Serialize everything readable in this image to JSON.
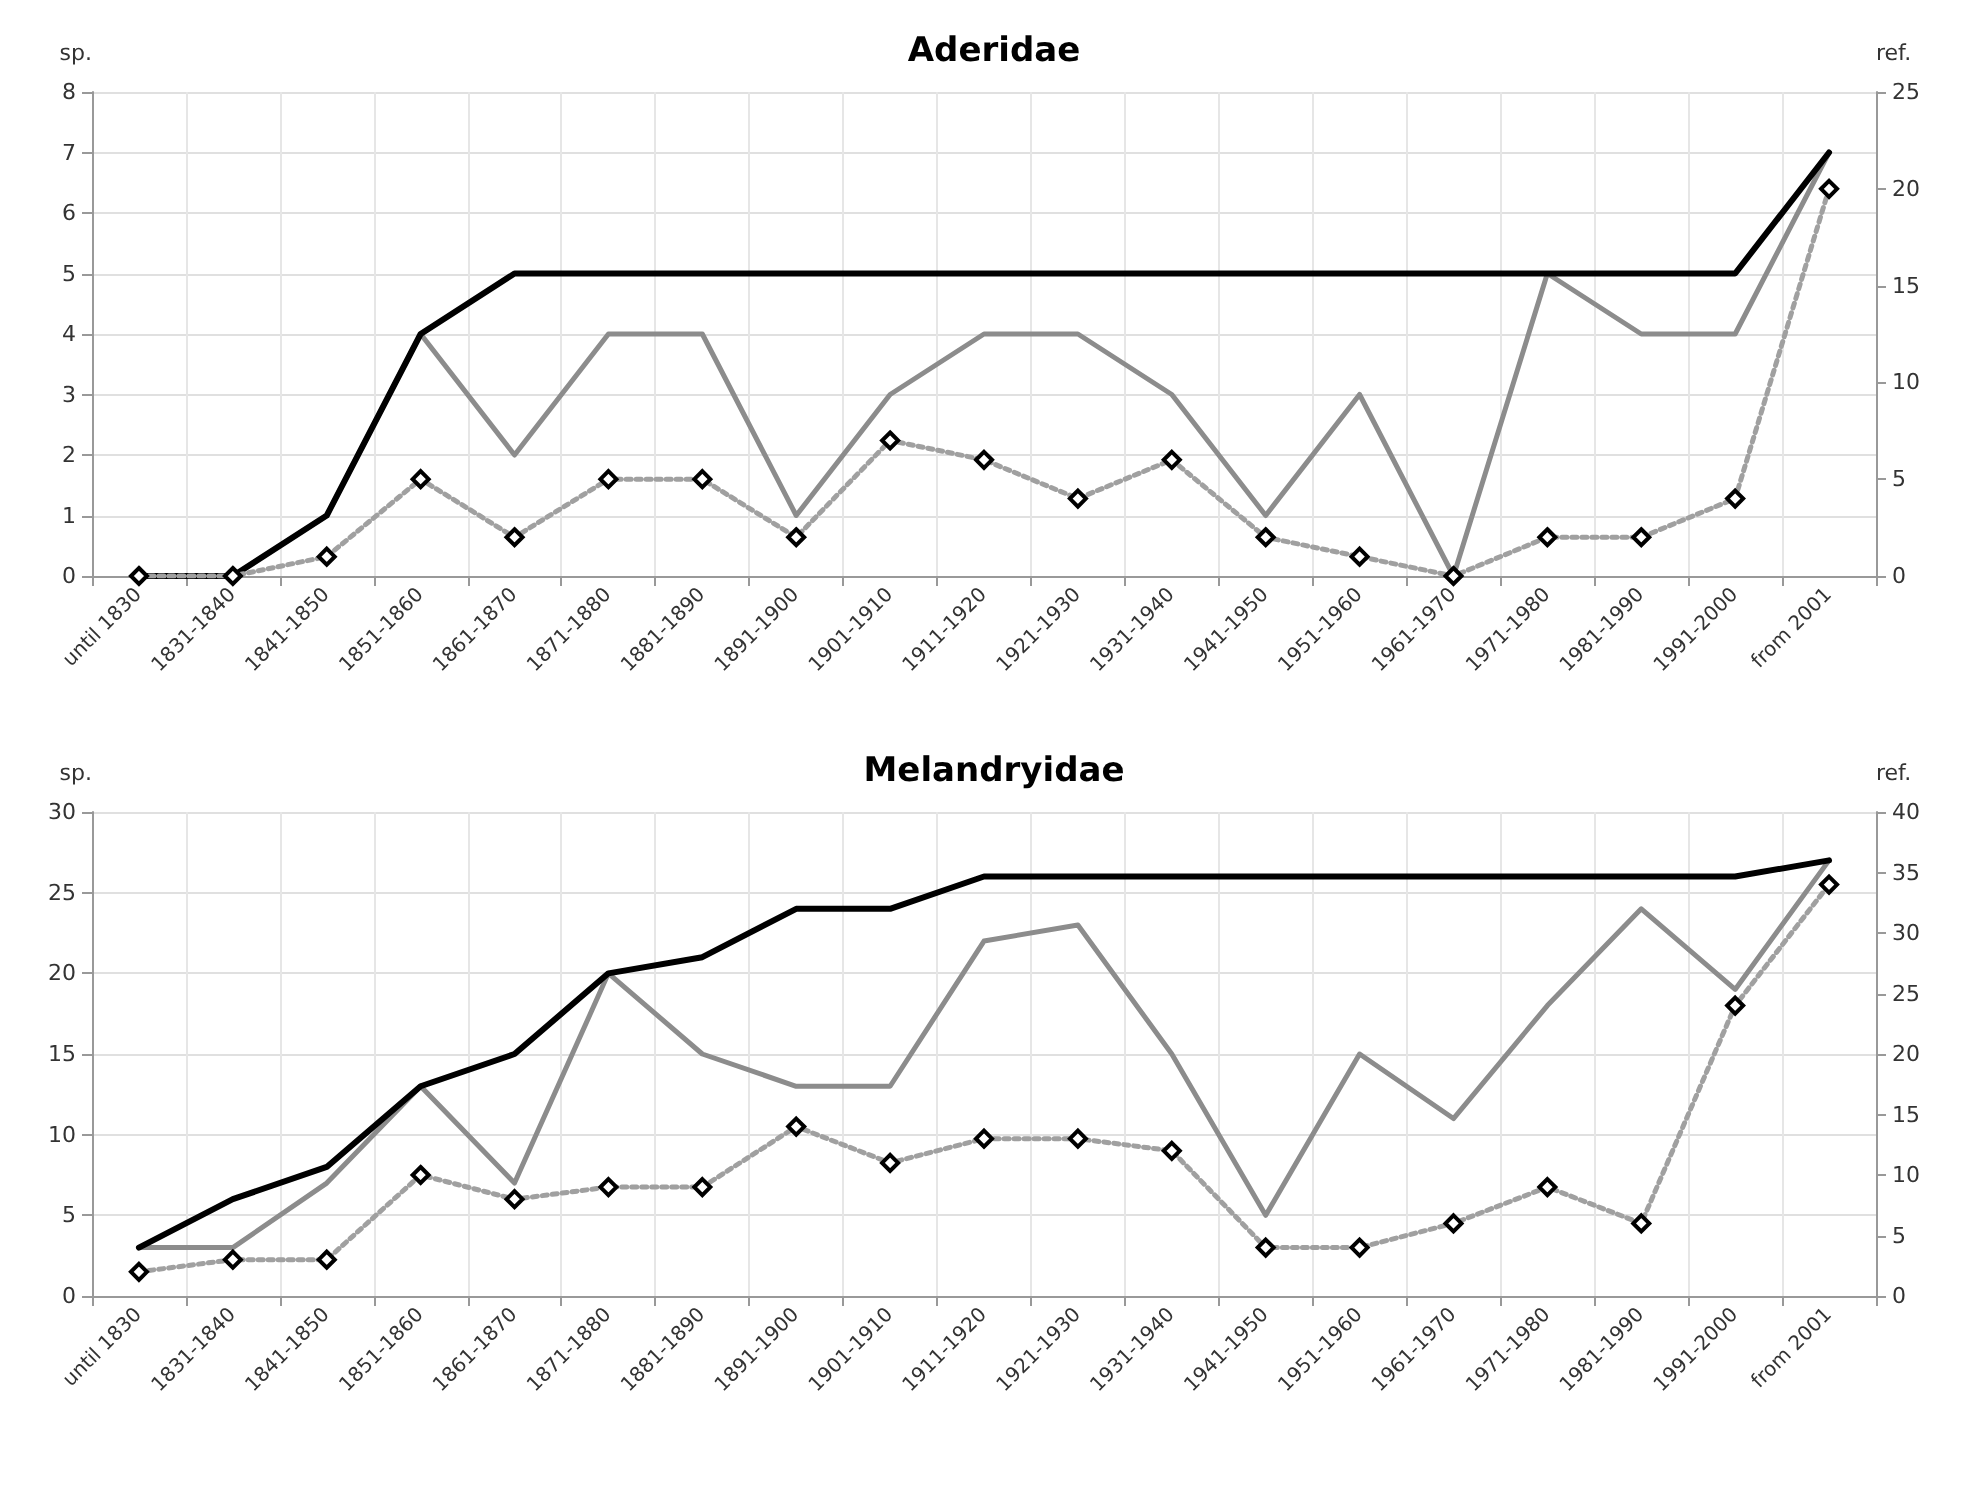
{
  "chart_data": [
    {
      "type": "line",
      "title": "Aderidae",
      "ylabel": "sp.",
      "y2label": "ref.",
      "categories": [
        "until 1830",
        "1831-1840",
        "1841-1850",
        "1851-1860",
        "1861-1870",
        "1871-1880",
        "1881-1890",
        "1891-1900",
        "1901-1910",
        "1911-1920",
        "1921-1930",
        "1931-1940",
        "1941-1950",
        "1951-1960",
        "1961-1970",
        "1971-1980",
        "1981-1990",
        "1991-2000",
        "from 2001"
      ],
      "ylim": [
        0,
        8
      ],
      "yticks": [
        0,
        1,
        2,
        3,
        4,
        5,
        6,
        7,
        8
      ],
      "y2lim": [
        0,
        25
      ],
      "y2ticks": [
        0,
        5,
        10,
        15,
        20,
        25
      ],
      "grid": true,
      "series": [
        {
          "color": "#8c8c8c",
          "values": [
            0,
            0,
            1,
            4,
            2,
            4,
            4,
            1,
            3,
            4,
            4,
            3,
            1,
            3,
            0,
            5,
            4,
            4,
            7
          ]
        },
        {
          "color": "#000000",
          "values": [
            0,
            0,
            1,
            4,
            5,
            5,
            5,
            5,
            5,
            5,
            5,
            5,
            5,
            5,
            5,
            5,
            5,
            5,
            7
          ]
        },
        {
          "color": "#a0a0a0",
          "axis": "y2",
          "marker": "diamond",
          "line_style": "dotted",
          "values": [
            0,
            0,
            1,
            5,
            2,
            5,
            5,
            2,
            7,
            6,
            4,
            6,
            2,
            1,
            0,
            2,
            2,
            4,
            20
          ]
        }
      ]
    },
    {
      "type": "line",
      "title": "Melandryidae",
      "ylabel": "sp.",
      "y2label": "ref.",
      "categories": [
        "until 1830",
        "1831-1840",
        "1841-1850",
        "1851-1860",
        "1861-1870",
        "1871-1880",
        "1881-1890",
        "1891-1900",
        "1901-1910",
        "1911-1920",
        "1921-1930",
        "1931-1940",
        "1941-1950",
        "1951-1960",
        "1961-1970",
        "1971-1980",
        "1981-1990",
        "1991-2000",
        "from 2001"
      ],
      "ylim": [
        0,
        30
      ],
      "yticks": [
        0,
        5,
        10,
        15,
        20,
        25,
        30
      ],
      "y2lim": [
        0,
        40
      ],
      "y2ticks": [
        0,
        5,
        10,
        15,
        20,
        25,
        30,
        35,
        40
      ],
      "grid": true,
      "series": [
        {
          "color": "#8c8c8c",
          "values": [
            3,
            3,
            7,
            13,
            7,
            20,
            15,
            13,
            13,
            22,
            23,
            15,
            5,
            15,
            11,
            18,
            24,
            19,
            27
          ]
        },
        {
          "color": "#000000",
          "values": [
            3,
            6,
            8,
            13,
            15,
            20,
            21,
            24,
            24,
            26,
            26,
            26,
            26,
            26,
            26,
            26,
            26,
            26,
            27
          ]
        },
        {
          "color": "#a0a0a0",
          "axis": "y2",
          "marker": "diamond",
          "line_style": "dotted",
          "values": [
            2,
            3,
            3,
            10,
            8,
            9,
            9,
            14,
            11,
            13,
            13,
            12,
            4,
            4,
            6,
            9,
            6,
            24,
            34
          ]
        }
      ]
    }
  ]
}
